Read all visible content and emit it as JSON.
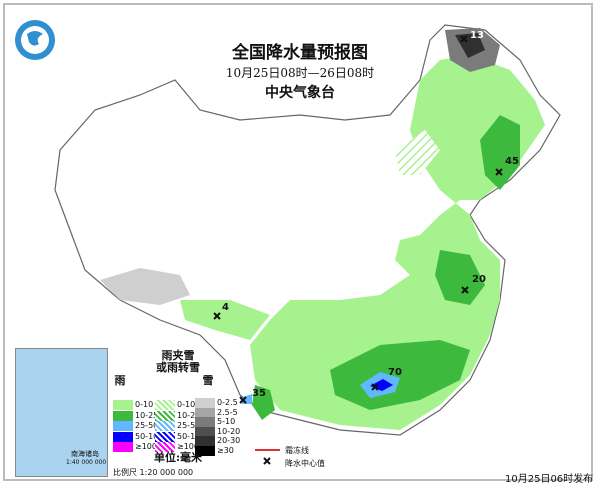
{
  "header": {
    "title": "全国降水量预报图",
    "period": "10月25日08时—26日08时",
    "organization": "中央气象台"
  },
  "logo": {
    "icon": "cma-logo-icon"
  },
  "precip_centers": [
    {
      "value": "13",
      "type": "snow"
    },
    {
      "value": "45",
      "type": "rain"
    },
    {
      "value": "20",
      "type": "rain"
    },
    {
      "value": "4",
      "type": "snow"
    },
    {
      "value": "70",
      "type": "rain"
    },
    {
      "value": "35",
      "type": "rain"
    }
  ],
  "legend": {
    "rain_header": "雨",
    "mix_header": "雨夹雪\n或雨转雪",
    "snow_header": "雪",
    "rain": [
      {
        "label": "0-10",
        "color": "#a6f28f"
      },
      {
        "label": "10-25",
        "color": "#3dba3d"
      },
      {
        "label": "25-50",
        "color": "#61b8ff"
      },
      {
        "label": "50-100",
        "color": "#0000fe"
      },
      {
        "label": "≥100",
        "color": "#fa00fa"
      }
    ],
    "mix": [
      {
        "label": "0-10",
        "color": "#a6f28f"
      },
      {
        "label": "10-25",
        "color": "#3dba3d"
      },
      {
        "label": "25-50",
        "color": "#61b8ff"
      },
      {
        "label": "50-100",
        "color": "#0000fe"
      },
      {
        "label": "≥100",
        "color": "#fa00fa"
      }
    ],
    "snow": [
      {
        "label": "0-2.5",
        "color": "#cfcfcf"
      },
      {
        "label": "2.5-5",
        "color": "#a5a5a5"
      },
      {
        "label": "5-10",
        "color": "#7b7b7b"
      },
      {
        "label": "10-20",
        "color": "#4f4f4f"
      },
      {
        "label": "20-30",
        "color": "#303030"
      },
      {
        "label": "≥30",
        "color": "#000000"
      }
    ],
    "unit": "单位:毫米",
    "scale": "比例尺  1:20 000 000",
    "shear_line": "霜冻线",
    "center_marker": "降水中心值"
  },
  "inset": {
    "title": "南海诸岛",
    "scale": "1:40 000 000"
  },
  "footer": {
    "release": "10月25日06时发布"
  }
}
